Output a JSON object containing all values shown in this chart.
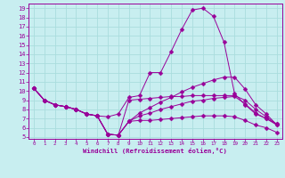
{
  "xlabel": "Windchill (Refroidissement éolien,°C)",
  "xlim": [
    -0.5,
    23.5
  ],
  "ylim": [
    4.8,
    19.5
  ],
  "xticks": [
    0,
    1,
    2,
    3,
    4,
    5,
    6,
    7,
    8,
    9,
    10,
    11,
    12,
    13,
    14,
    15,
    16,
    17,
    18,
    19,
    20,
    21,
    22,
    23
  ],
  "yticks": [
    5,
    6,
    7,
    8,
    9,
    10,
    11,
    12,
    13,
    14,
    15,
    16,
    17,
    18,
    19
  ],
  "bg_color": "#c8eef0",
  "line_color": "#990099",
  "grid_color": "#aadddd",
  "lines": [
    {
      "x": [
        0,
        1,
        2,
        3,
        4,
        5,
        6,
        7,
        8,
        9,
        10,
        11,
        12,
        13,
        14,
        15,
        16,
        17,
        18,
        19,
        20,
        21,
        22,
        23
      ],
      "y": [
        10.3,
        9.0,
        8.5,
        8.3,
        8.0,
        7.5,
        7.3,
        7.2,
        7.5,
        9.3,
        9.5,
        12.0,
        12.0,
        14.3,
        16.7,
        18.8,
        19.0,
        18.1,
        15.3,
        9.7,
        8.5,
        7.5,
        7.0,
        6.4
      ],
      "marker": "D",
      "markersize": 2.5
    },
    {
      "x": [
        0,
        1,
        2,
        3,
        4,
        5,
        6,
        7,
        8,
        9,
        10,
        11,
        12,
        13,
        14,
        15,
        16,
        17,
        18,
        19,
        20,
        21,
        22,
        23
      ],
      "y": [
        10.3,
        9.0,
        8.5,
        8.3,
        8.0,
        7.5,
        7.3,
        5.3,
        5.2,
        6.7,
        6.8,
        6.8,
        6.9,
        7.0,
        7.1,
        7.2,
        7.3,
        7.3,
        7.3,
        7.2,
        6.8,
        6.3,
        6.0,
        5.5
      ],
      "marker": "D",
      "markersize": 2.5
    },
    {
      "x": [
        0,
        1,
        2,
        3,
        4,
        5,
        6,
        7,
        8,
        9,
        10,
        11,
        12,
        13,
        14,
        15,
        16,
        17,
        18,
        19,
        20,
        21,
        22,
        23
      ],
      "y": [
        10.3,
        9.0,
        8.5,
        8.3,
        8.0,
        7.5,
        7.3,
        5.3,
        5.2,
        6.7,
        7.3,
        7.6,
        8.0,
        8.3,
        8.6,
        8.9,
        9.0,
        9.2,
        9.3,
        9.4,
        8.6,
        7.6,
        7.0,
        6.3
      ],
      "marker": "D",
      "markersize": 2.5
    },
    {
      "x": [
        0,
        1,
        2,
        3,
        4,
        5,
        6,
        7,
        8,
        9,
        10,
        11,
        12,
        13,
        14,
        15,
        16,
        17,
        18,
        19,
        20,
        21,
        22,
        23
      ],
      "y": [
        10.3,
        9.0,
        8.5,
        8.3,
        8.0,
        7.5,
        7.3,
        5.3,
        5.2,
        6.7,
        7.6,
        8.2,
        8.8,
        9.3,
        9.9,
        10.4,
        10.8,
        11.2,
        11.5,
        11.5,
        10.2,
        8.5,
        7.5,
        6.3
      ],
      "marker": "D",
      "markersize": 2.5
    },
    {
      "x": [
        0,
        1,
        2,
        3,
        4,
        5,
        6,
        7,
        8,
        9,
        10,
        11,
        12,
        13,
        14,
        15,
        16,
        17,
        18,
        19,
        20,
        21,
        22,
        23
      ],
      "y": [
        10.3,
        9.0,
        8.5,
        8.3,
        8.0,
        7.5,
        7.3,
        5.3,
        5.2,
        9.0,
        9.1,
        9.2,
        9.3,
        9.4,
        9.4,
        9.5,
        9.5,
        9.5,
        9.5,
        9.5,
        9.0,
        8.0,
        7.2,
        6.4
      ],
      "marker": "D",
      "markersize": 2.5
    }
  ]
}
